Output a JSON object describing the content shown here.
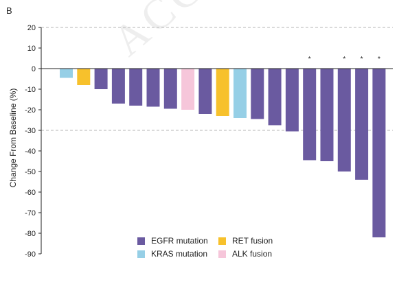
{
  "panel_label": "B",
  "watermark": "ACCEPTED",
  "colors": {
    "EGFR mutation": "#6a5aa0",
    "KRAS mutation": "#96cfe6",
    "RET fusion": "#f7c12c",
    "ALK fusion": "#f6c6da"
  },
  "chart_data": {
    "type": "bar",
    "title": "",
    "xlabel": "",
    "ylabel": "Change From Baseline (%)",
    "ylim": [
      -90,
      20
    ],
    "yticks": [
      20,
      10,
      0,
      -10,
      -20,
      -30,
      -40,
      -50,
      -60,
      -70,
      -80,
      -90
    ],
    "reference_lines": [
      20,
      -30
    ],
    "grid": false,
    "legend_position": "bottom",
    "bars": [
      {
        "value": -4.5,
        "group": "KRAS mutation",
        "marker": ""
      },
      {
        "value": -8,
        "group": "RET fusion",
        "marker": ""
      },
      {
        "value": -10,
        "group": "EGFR mutation",
        "marker": ""
      },
      {
        "value": -17,
        "group": "EGFR mutation",
        "marker": ""
      },
      {
        "value": -18,
        "group": "EGFR mutation",
        "marker": ""
      },
      {
        "value": -18.5,
        "group": "EGFR mutation",
        "marker": ""
      },
      {
        "value": -19.5,
        "group": "EGFR mutation",
        "marker": ""
      },
      {
        "value": -20,
        "group": "ALK fusion",
        "marker": ""
      },
      {
        "value": -22,
        "group": "EGFR mutation",
        "marker": ""
      },
      {
        "value": -23,
        "group": "RET fusion",
        "marker": ""
      },
      {
        "value": -24,
        "group": "KRAS mutation",
        "marker": ""
      },
      {
        "value": -24.5,
        "group": "EGFR mutation",
        "marker": ""
      },
      {
        "value": -27.5,
        "group": "EGFR mutation",
        "marker": ""
      },
      {
        "value": -30.5,
        "group": "EGFR mutation",
        "marker": ""
      },
      {
        "value": -44.5,
        "group": "EGFR mutation",
        "marker": "*"
      },
      {
        "value": -45,
        "group": "EGFR mutation",
        "marker": ""
      },
      {
        "value": -50,
        "group": "EGFR mutation",
        "marker": "*"
      },
      {
        "value": -54,
        "group": "EGFR mutation",
        "marker": "*"
      },
      {
        "value": -82,
        "group": "EGFR mutation",
        "marker": "*"
      }
    ],
    "legend": [
      "EGFR mutation",
      "RET fusion",
      "KRAS mutation",
      "ALK fusion"
    ]
  }
}
